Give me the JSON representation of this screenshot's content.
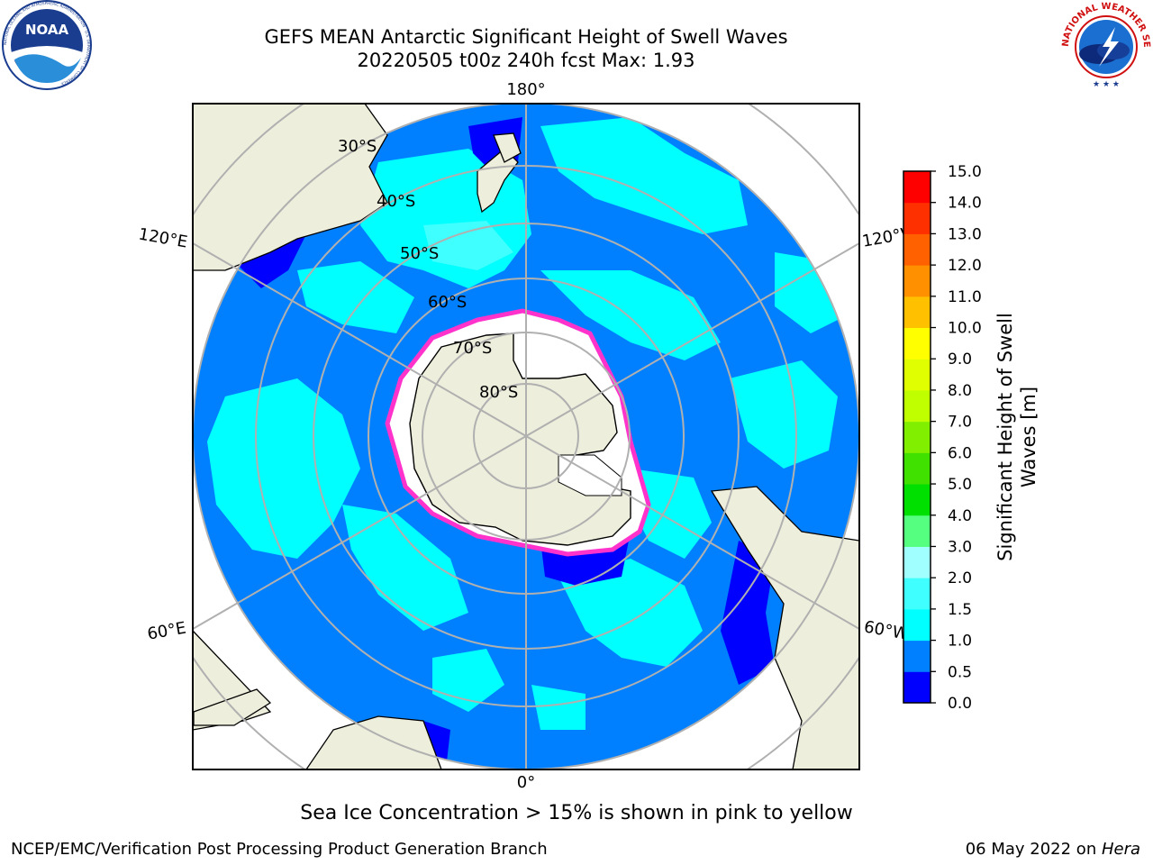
{
  "header": {
    "title_line1": "GEFS MEAN Antarctic Significant Height of Swell Waves",
    "title_line2": "20220505 t00z 240h fcst   Max: 1.93"
  },
  "logos": {
    "noaa_text": "NOAA",
    "noaa_ring_text": "NATIONAL OCEANIC AND ATMOSPHERIC ADMINISTRATION · U.S. DEPARTMENT OF COMMERCE",
    "nws_ring_text": "NATIONAL WEATHER SERVICE"
  },
  "map": {
    "projection": "south-polar-stereographic",
    "longitude_labels": {
      "top": "180°",
      "left_upper": "120°E",
      "left_lower": "60°E",
      "bottom": "0°",
      "right_upper": "120°W",
      "right_lower": "60°W"
    },
    "latitude_labels": [
      "30°S",
      "40°S",
      "50°S",
      "60°S",
      "70°S",
      "80°S"
    ],
    "colors": {
      "ocean_base": "#0080ff",
      "land": "#eeeedc",
      "ice_interior": "#ffffff",
      "ice_edge": "#ff33cc",
      "swell_1_0_1_5": "#00ffff",
      "swell_0_0_0_5": "#0000ff",
      "gridline": "#b0b0b0"
    }
  },
  "colorbar": {
    "label": "Significant Height of Swell Waves [m]",
    "ticks": [
      "0.0",
      "0.5",
      "1.0",
      "1.5",
      "2.0",
      "3.0",
      "4.0",
      "5.0",
      "6.0",
      "7.0",
      "8.0",
      "9.0",
      "10.0",
      "11.0",
      "12.0",
      "13.0",
      "14.0",
      "15.0"
    ],
    "colors": [
      "#0000ff",
      "#0080ff",
      "#00ffff",
      "#40ffff",
      "#a0ffff",
      "#55ff80",
      "#00e000",
      "#40e000",
      "#80f000",
      "#c0ff00",
      "#e0ff00",
      "#ffff00",
      "#ffc000",
      "#ff9000",
      "#ff6000",
      "#ff3000",
      "#ff0000"
    ]
  },
  "note": "Sea Ice Concentration > 15% is shown in pink to yellow",
  "footer": {
    "left": "NCEP/EMC/Verification Post Processing Product Generation Branch",
    "date": "06 May 2022 on ",
    "machine": "Hera"
  }
}
